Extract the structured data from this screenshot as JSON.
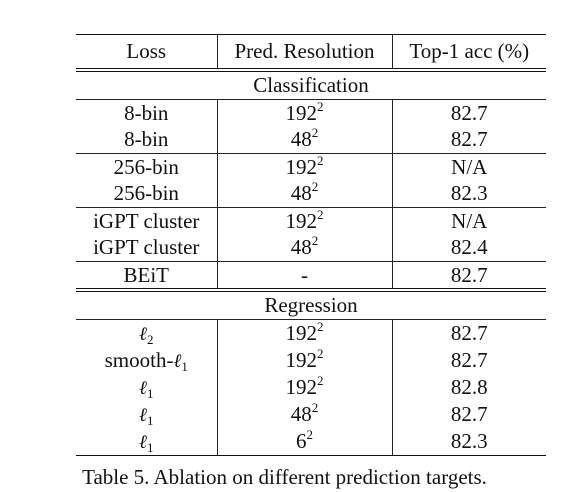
{
  "table": {
    "headers": [
      "Loss",
      "Pred. Resolution",
      "Top-1 acc (%)"
    ],
    "sections": [
      {
        "title": "Classification",
        "groups": [
          [
            {
              "loss": "8-bin",
              "res_base": "192",
              "res_exp": "2",
              "acc": "82.7"
            },
            {
              "loss": "8-bin",
              "res_base": "48",
              "res_exp": "2",
              "acc": "82.7"
            }
          ],
          [
            {
              "loss": "256-bin",
              "res_base": "192",
              "res_exp": "2",
              "acc": "N/A"
            },
            {
              "loss": "256-bin",
              "res_base": "48",
              "res_exp": "2",
              "acc": "82.3"
            }
          ],
          [
            {
              "loss": "iGPT cluster",
              "res_base": "192",
              "res_exp": "2",
              "acc": "N/A"
            },
            {
              "loss": "iGPT cluster",
              "res_base": "48",
              "res_exp": "2",
              "acc": "82.4"
            }
          ],
          [
            {
              "loss": "BEiT",
              "res_base": "-",
              "res_exp": "",
              "acc": "82.7"
            }
          ]
        ]
      },
      {
        "title": "Regression",
        "groups": [
          [
            {
              "loss_prefix": "",
              "loss_sym": "ℓ",
              "loss_sub": "2",
              "res_base": "192",
              "res_exp": "2",
              "acc": "82.7"
            },
            {
              "loss_prefix": "smooth-",
              "loss_sym": "ℓ",
              "loss_sub": "1",
              "res_base": "192",
              "res_exp": "2",
              "acc": "82.7"
            },
            {
              "loss_prefix": "",
              "loss_sym": "ℓ",
              "loss_sub": "1",
              "res_base": "192",
              "res_exp": "2",
              "acc": "82.8"
            },
            {
              "loss_prefix": "",
              "loss_sym": "ℓ",
              "loss_sub": "1",
              "res_base": "48",
              "res_exp": "2",
              "acc": "82.7"
            },
            {
              "loss_prefix": "",
              "loss_sym": "ℓ",
              "loss_sub": "1",
              "res_base": "6",
              "res_exp": "2",
              "acc": "82.3"
            }
          ]
        ]
      }
    ]
  },
  "caption": "Table 5. Ablation on different prediction targets."
}
